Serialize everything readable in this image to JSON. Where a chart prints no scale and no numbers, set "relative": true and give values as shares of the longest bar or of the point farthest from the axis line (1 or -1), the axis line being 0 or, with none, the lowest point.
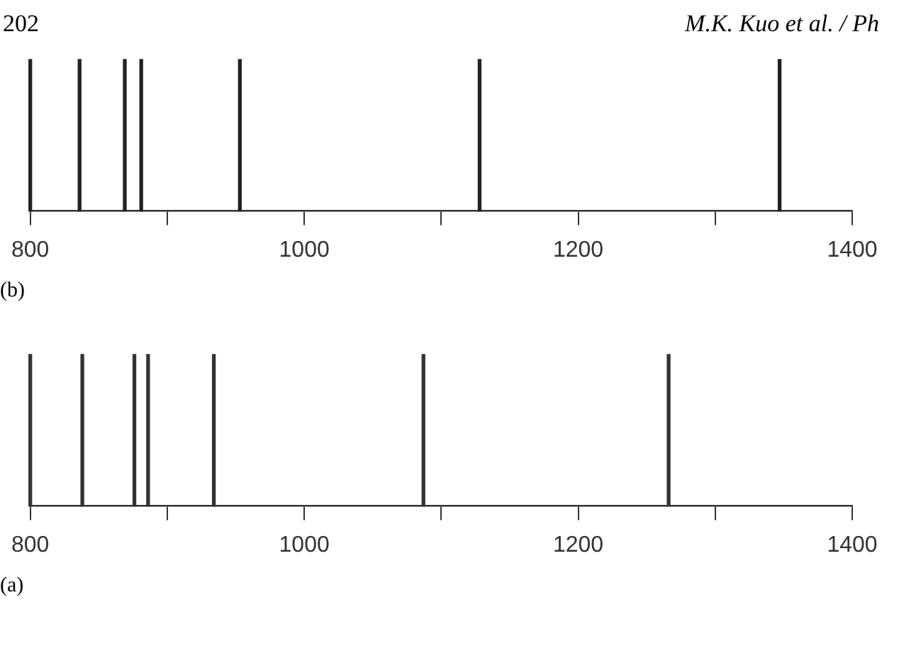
{
  "chart_data": [
    {
      "type": "bar",
      "relative": true,
      "x": [
        800,
        836,
        869,
        881,
        953,
        1128,
        1347
      ],
      "values": [
        1,
        1,
        1,
        1,
        1,
        1,
        1
      ],
      "color": "#222222",
      "xlim": [
        800,
        1400
      ],
      "xticks": [
        800,
        {
          "value": 900,
          "label": null
        },
        1000,
        {
          "value": 1100,
          "label": null
        },
        1200,
        {
          "value": 1300,
          "label": null
        },
        1400
      ],
      "annotations": [
        "202",
        "M.K. Kuo et al. / Ph",
        "(b)"
      ]
    },
    {
      "type": "bar",
      "relative": true,
      "x": [
        800,
        838,
        876,
        886,
        934,
        1087,
        1266
      ],
      "values": [
        1,
        1,
        1,
        1,
        1,
        1,
        1
      ],
      "color": "#333333",
      "xlim": [
        800,
        1400
      ],
      "xticks": [
        800,
        {
          "value": 900,
          "label": null
        },
        1000,
        {
          "value": 1100,
          "label": null
        },
        1200,
        {
          "value": 1300,
          "label": null
        },
        1400
      ],
      "annotations": [
        "(a)"
      ]
    }
  ]
}
